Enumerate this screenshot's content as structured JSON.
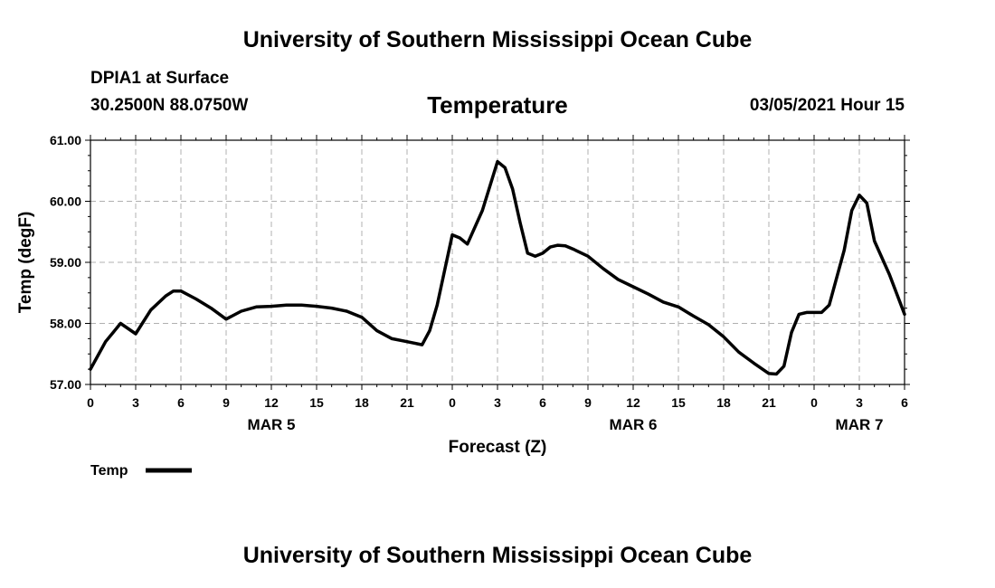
{
  "header": {
    "org_title": "University of Southern Mississippi Ocean Cube",
    "station": "DPIA1 at Surface",
    "coords": "30.2500N 88.0750W",
    "variable": "Temperature",
    "datetime": "03/05/2021 Hour 15"
  },
  "footer": {
    "org_title": "University of Southern Mississippi Ocean Cube"
  },
  "chart_data": {
    "type": "line",
    "title": "Temperature",
    "xlabel": "Forecast (Z)",
    "ylabel": "Temp (degF)",
    "ylim": [
      57.0,
      61.0
    ],
    "xlim_hours": [
      0,
      54
    ],
    "yticks": [
      "57.00",
      "58.00",
      "59.00",
      "60.00",
      "61.00"
    ],
    "xticks": [
      "0",
      "3",
      "6",
      "9",
      "12",
      "15",
      "18",
      "21",
      "0",
      "3",
      "6",
      "9",
      "12",
      "15",
      "18",
      "21",
      "0",
      "3",
      "6"
    ],
    "day_labels": [
      {
        "label": "MAR 5",
        "hour": 12
      },
      {
        "label": "MAR 6",
        "hour": 36
      },
      {
        "label": "MAR 7",
        "hour": 51
      }
    ],
    "grid": true,
    "legend": {
      "position": "bottom-left",
      "entries": [
        "Temp"
      ]
    },
    "series": [
      {
        "name": "Temp",
        "color": "#000000",
        "x": [
          0,
          1,
          2,
          3,
          4,
          5,
          5.5,
          6,
          7,
          8,
          9,
          10,
          11,
          12,
          13,
          14,
          15,
          16,
          17,
          18,
          19,
          20,
          21,
          22,
          22.5,
          23,
          24,
          24.5,
          25,
          26,
          27,
          27.5,
          28,
          28.5,
          29,
          29.5,
          30,
          30.5,
          31,
          31.5,
          32,
          33,
          34,
          35,
          36,
          37,
          38,
          39,
          40,
          41,
          42,
          43,
          44,
          45,
          45.5,
          46,
          46.5,
          47,
          47.5,
          48,
          48.5,
          49,
          50,
          50.5,
          51,
          51.5,
          52,
          53,
          54
        ],
        "values": [
          57.25,
          57.7,
          58.0,
          57.83,
          58.22,
          58.45,
          58.53,
          58.53,
          58.4,
          58.25,
          58.07,
          58.2,
          58.27,
          58.28,
          58.3,
          58.3,
          58.28,
          58.25,
          58.2,
          58.1,
          57.88,
          57.75,
          57.7,
          57.65,
          57.88,
          58.3,
          59.45,
          59.4,
          59.3,
          59.85,
          60.65,
          60.55,
          60.2,
          59.65,
          59.15,
          59.1,
          59.15,
          59.25,
          59.28,
          59.27,
          59.22,
          59.1,
          58.9,
          58.72,
          58.6,
          58.48,
          58.35,
          58.27,
          58.12,
          57.98,
          57.78,
          57.53,
          57.35,
          57.18,
          57.17,
          57.3,
          57.85,
          58.15,
          58.18,
          58.18,
          58.18,
          58.3,
          59.2,
          59.85,
          60.1,
          59.97,
          59.35,
          58.8,
          58.15
        ]
      }
    ]
  }
}
